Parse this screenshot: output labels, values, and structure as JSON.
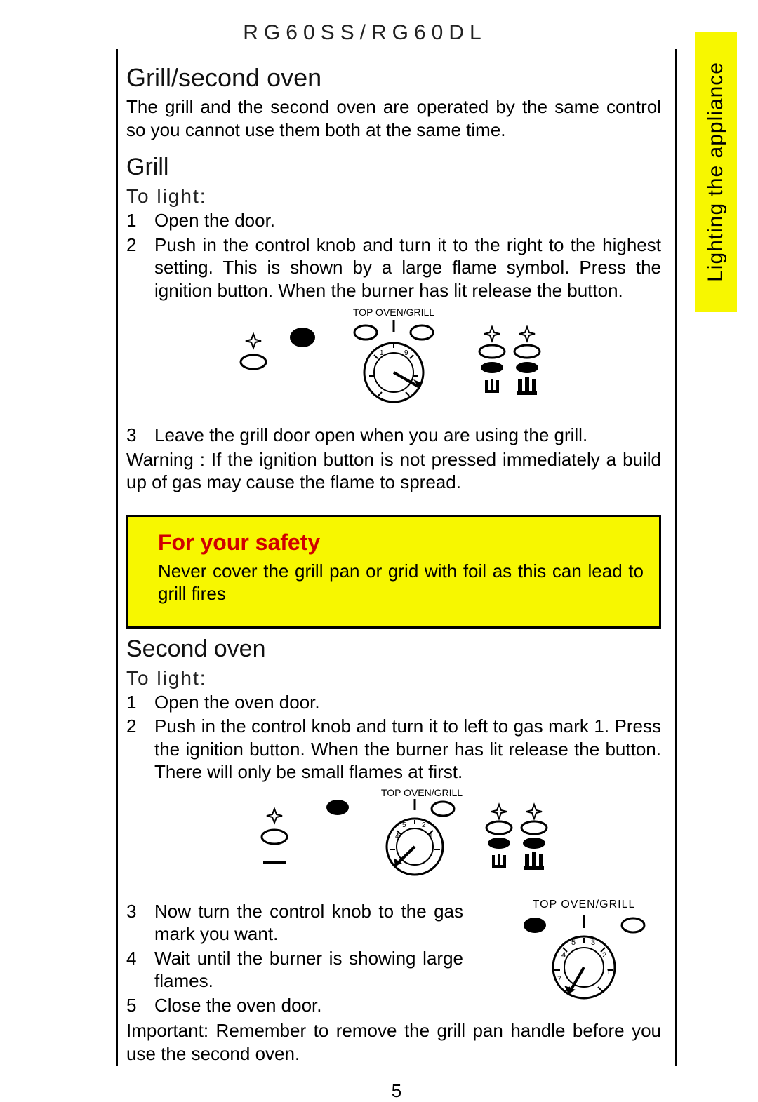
{
  "model_header": "RG60SS/RG60DL",
  "side_tab": "Lighting the appliance",
  "page_number": "5",
  "colors": {
    "highlight_bg": "#f7f700",
    "safety_title": "#d00000",
    "rule": "#000000",
    "text": "#000000",
    "page_bg": "#ffffff"
  },
  "sections": {
    "grill_second_oven": {
      "heading": "Grill/second oven",
      "intro": "The grill and the second oven are operated by the same control so you cannot use them both at the same time."
    },
    "grill": {
      "heading": "Grill",
      "to_light": "To light:",
      "steps": [
        {
          "n": "1",
          "text": "Open the door."
        },
        {
          "n": "2",
          "text": "Push in the control knob and turn it to the right to the highest setting. This is shown by a large flame symbol. Press the ignition button. When the burner has lit release the button."
        },
        {
          "n": "3",
          "text": "Leave the grill door open when you are using the grill."
        }
      ],
      "diagram_label": "TOP OVEN/GRILL",
      "warning": "Warning : If the ignition button is not pressed immediately a build up of gas may cause the flame to spread."
    },
    "safety_box": {
      "heading": "For your safety",
      "text": "Never cover the grill pan or grid with foil as this can lead to grill fires"
    },
    "second_oven": {
      "heading": "Second oven",
      "to_light": "To light:",
      "steps_top": [
        {
          "n": "1",
          "text": "Open the oven door."
        },
        {
          "n": "2",
          "text": "Push in the control knob and  turn it to left  to gas mark 1. Press the ignition button.  When the burner has lit release the button. There will only be small flames at first."
        }
      ],
      "diagram_label": "TOP OVEN/GRILL",
      "inset_label": "TOP OVEN/GRILL",
      "steps_bottom": [
        {
          "n": "3",
          "text": "Now turn the control knob to the gas mark you want."
        },
        {
          "n": "4",
          "text": "Wait until the burner is showing large flames."
        },
        {
          "n": "5",
          "text": "Close the oven door."
        }
      ],
      "important_label": "Important:",
      "important_text": "Remember to remove the grill pan handle before you use the second oven."
    }
  }
}
